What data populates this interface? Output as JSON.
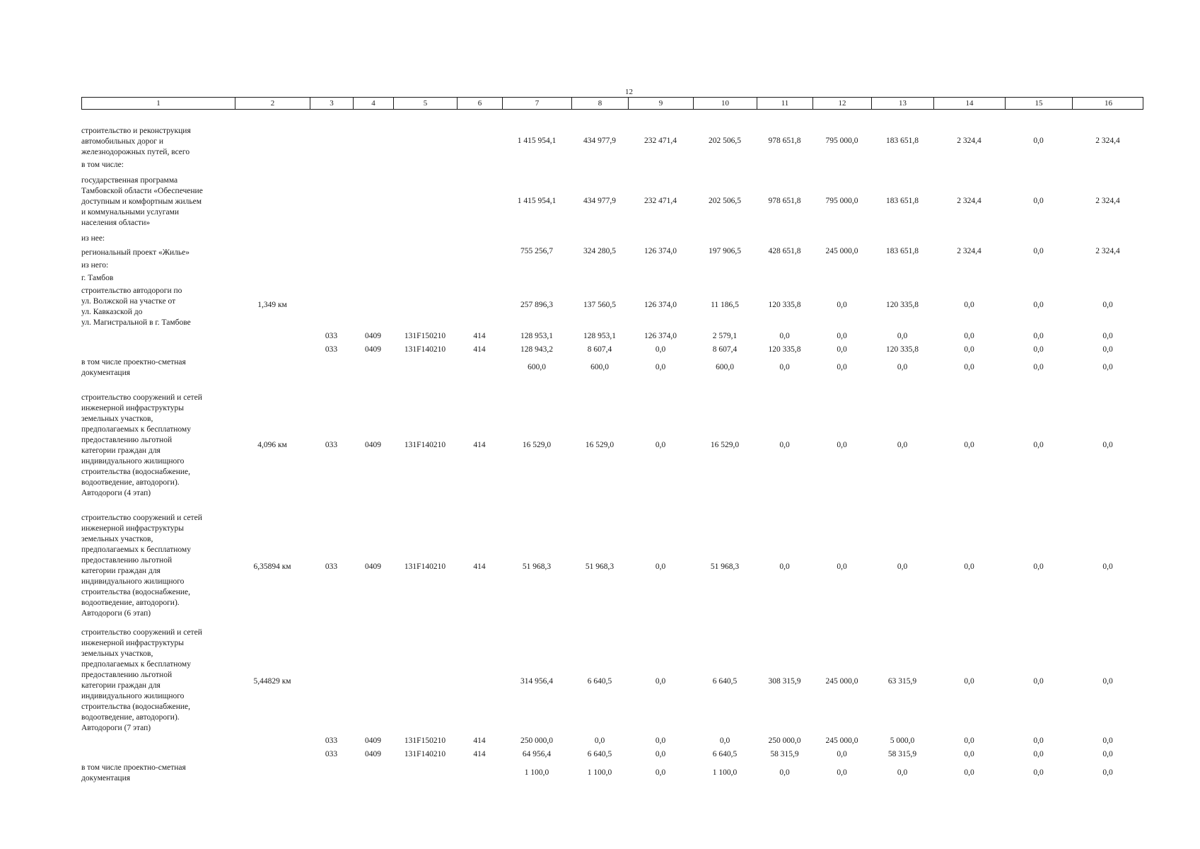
{
  "page_number": "12",
  "columns": [
    "1",
    "2",
    "3",
    "4",
    "5",
    "6",
    "7",
    "8",
    "9",
    "10",
    "11",
    "12",
    "13",
    "14",
    "15",
    "16"
  ],
  "rows": [
    {
      "id": "r1",
      "desc": "строительство и реконструкция\nавтомобильных дорог и\nжелезнодорожных путей, всего",
      "values": [
        "",
        "",
        "",
        "",
        "",
        "1 415 954,1",
        "434 977,9",
        "232 471,4",
        "202 506,5",
        "978 651,8",
        "795 000,0",
        "183 651,8",
        "2 324,4",
        "0,0",
        "2 324,4"
      ]
    },
    {
      "id": "r2",
      "desc": "в том числе:",
      "values": []
    },
    {
      "id": "r3",
      "desc": "государственная программа\nТамбовской области «Обеспечение\nдоступным и комфортным жильем\nи коммунальными услугами\nнаселения области»",
      "values": [
        "",
        "",
        "",
        "",
        "",
        "1 415 954,1",
        "434 977,9",
        "232 471,4",
        "202 506,5",
        "978 651,8",
        "795 000,0",
        "183 651,8",
        "2 324,4",
        "0,0",
        "2 324,4"
      ]
    },
    {
      "id": "r4",
      "desc": "из нее:",
      "values": []
    },
    {
      "id": "r5",
      "desc": "региональный проект «Жилье»",
      "values": [
        "",
        "",
        "",
        "",
        "",
        "755 256,7",
        "324 280,5",
        "126 374,0",
        "197 906,5",
        "428 651,8",
        "245 000,0",
        "183 651,8",
        "2 324,4",
        "0,0",
        "2 324,4"
      ]
    },
    {
      "id": "r6",
      "desc": "из него:",
      "values": []
    },
    {
      "id": "r7",
      "desc": "г. Тамбов",
      "values": []
    },
    {
      "id": "r8",
      "desc": "строительство автодороги по\nул. Волжской на участке от\nул. Кавказской до\nул. Магистральной в г. Тамбове",
      "values": [
        "1,349 км",
        "",
        "",
        "",
        "",
        "257 896,3",
        "137 560,5",
        "126 374,0",
        "11 186,5",
        "120 335,8",
        "0,0",
        "120 335,8",
        "0,0",
        "0,0",
        "0,0"
      ]
    },
    {
      "id": "r9",
      "desc": "",
      "values": [
        "",
        "033",
        "0409",
        "131F150210",
        "414",
        "128 953,1",
        "128 953,1",
        "126 374,0",
        "2 579,1",
        "0,0",
        "0,0",
        "0,0",
        "0,0",
        "0,0",
        "0,0"
      ]
    },
    {
      "id": "r10",
      "desc": "",
      "values": [
        "",
        "033",
        "0409",
        "131F140210",
        "414",
        "128 943,2",
        "8 607,4",
        "0,0",
        "8 607,4",
        "120 335,8",
        "0,0",
        "120 335,8",
        "0,0",
        "0,0",
        "0,0"
      ]
    },
    {
      "id": "r11",
      "desc": "в том числе проектно-сметная\nдокументация",
      "values": [
        "",
        "",
        "",
        "",
        "",
        "600,0",
        "600,0",
        "0,0",
        "600,0",
        "0,0",
        "0,0",
        "0,0",
        "0,0",
        "0,0",
        "0,0"
      ]
    },
    {
      "id": "r12",
      "desc": "строительство сооружений и сетей\nинженерной инфраструктуры\nземельных участков,\nпредполагаемых к бесплатному\nпредоставлению льготной\nкатегории граждан для\nиндивидуального жилищного\nстроительства (водоснабжение,\nводоотведение, автодороги).\nАвтодороги (4 этап)",
      "values": [
        "4,096 км",
        "033",
        "0409",
        "131F140210",
        "414",
        "16 529,0",
        "16 529,0",
        "0,0",
        "16 529,0",
        "0,0",
        "0,0",
        "0,0",
        "0,0",
        "0,0",
        "0,0"
      ]
    },
    {
      "id": "r13",
      "desc": "строительство сооружений и сетей\nинженерной инфраструктуры\nземельных участков,\nпредполагаемых к бесплатному\nпредоставлению льготной\nкатегории граждан для\nиндивидуального жилищного\nстроительства (водоснабжение,\nводоотведение, автодороги).\nАвтодороги (6 этап)",
      "values": [
        "6,35894 км",
        "033",
        "0409",
        "131F140210",
        "414",
        "51 968,3",
        "51 968,3",
        "0,0",
        "51 968,3",
        "0,0",
        "0,0",
        "0,0",
        "0,0",
        "0,0",
        "0,0"
      ]
    },
    {
      "id": "r14",
      "desc": "строительство сооружений и сетей\nинженерной инфраструктуры\nземельных участков,\nпредполагаемых к бесплатному\nпредоставлению льготной\nкатегории граждан для\nиндивидуального жилищного\nстроительства (водоснабжение,\nводоотведение, автодороги).\nАвтодороги (7 этап)",
      "values": [
        "5,44829 км",
        "",
        "",
        "",
        "",
        "314 956,4",
        "6 640,5",
        "0,0",
        "6 640,5",
        "308 315,9",
        "245 000,0",
        "63 315,9",
        "0,0",
        "0,0",
        "0,0"
      ]
    },
    {
      "id": "r15",
      "desc": "",
      "values": [
        "",
        "033",
        "0409",
        "131F150210",
        "414",
        "250 000,0",
        "0,0",
        "0,0",
        "0,0",
        "250 000,0",
        "245 000,0",
        "5 000,0",
        "0,0",
        "0,0",
        "0,0"
      ]
    },
    {
      "id": "r16",
      "desc": "",
      "values": [
        "",
        "033",
        "0409",
        "131F140210",
        "414",
        "64 956,4",
        "6 640,5",
        "0,0",
        "6 640,5",
        "58 315,9",
        "0,0",
        "58 315,9",
        "0,0",
        "0,0",
        "0,0"
      ]
    },
    {
      "id": "r17",
      "desc": "в том числе проектно-сметная\nдокументация",
      "values": [
        "",
        "",
        "",
        "",
        "",
        "1 100,0",
        "1 100,0",
        "0,0",
        "1 100,0",
        "0,0",
        "0,0",
        "0,0",
        "0,0",
        "0,0",
        "0,0"
      ]
    }
  ]
}
